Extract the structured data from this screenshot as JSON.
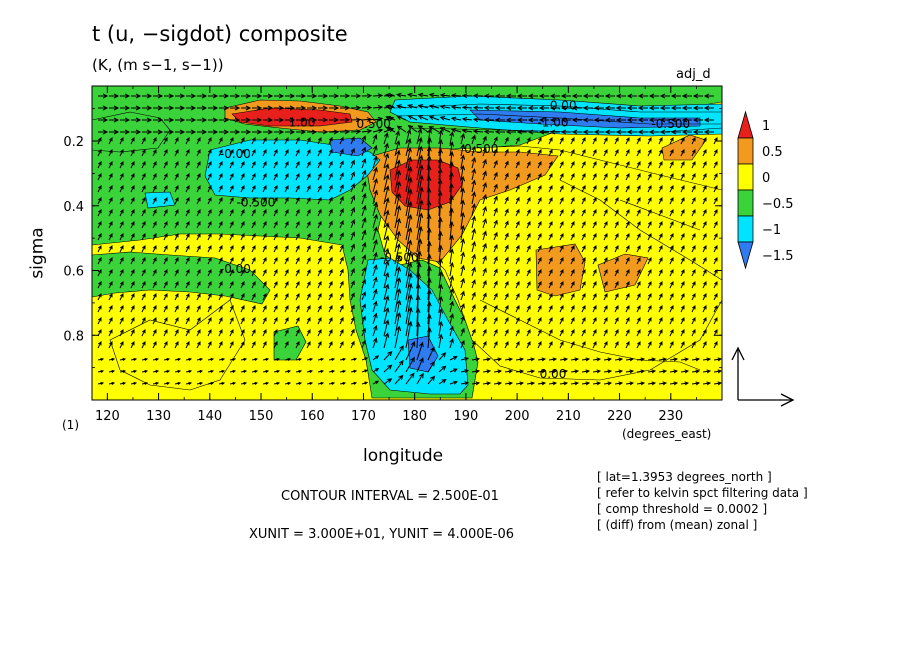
{
  "title": "t (u, −sigdot) composite",
  "units_title": "(K, (m s−1, s−1))",
  "experiment_label": "adj_d",
  "ylabel": "sigma",
  "xlabel": "longitude",
  "xunit_label": "(degrees_east)",
  "yunit_mark": "(1)",
  "contour_interval_text": "CONTOUR INTERVAL = 2.500E-01",
  "xyunit_text": "XUNIT = 3.000E+01, YUNIT = 4.000E-06",
  "info_lines": [
    "[ lat=1.3953 degrees_north ]",
    "[ refer to kelvin spct filtering data ]",
    "[ comp threshold = 0.0002 ]",
    "[ (diff) from (mean) zonal ]"
  ],
  "chart_data": {
    "type": "heatmap",
    "title": "t (u, −sigdot) composite",
    "xlabel": "longitude",
    "ylabel": "sigma",
    "xlim": [
      117,
      240
    ],
    "ylim": [
      1.0,
      0.03
    ],
    "x_ticks": [
      "120",
      "130",
      "140",
      "150",
      "160",
      "170",
      "180",
      "190",
      "200",
      "210",
      "220",
      "230"
    ],
    "x_tick_values": [
      120,
      130,
      140,
      150,
      160,
      170,
      180,
      190,
      200,
      210,
      220,
      230
    ],
    "y_ticks": [
      "0.2",
      "0.4",
      "0.6",
      "0.8"
    ],
    "y_tick_values": [
      0.2,
      0.4,
      0.6,
      0.8
    ],
    "colorbar": {
      "levels": [
        "1",
        "0.5",
        "0",
        "−0.5",
        "−1",
        "−1.5"
      ],
      "colors": [
        "#e8201c",
        "#f29a1e",
        "#ffff00",
        "#3ad33a",
        "#00e5ff",
        "#2f7bf0"
      ]
    },
    "colors": {
      "red": "#e8201c",
      "orange": "#f29a1e",
      "yellow": "#ffff00",
      "green": "#3ad33a",
      "cyan": "#00e5ff",
      "blue": "#2f7bf0"
    },
    "contour_labels": [
      {
        "text": "0.00",
        "lon": 209,
        "sigma": 0.09
      },
      {
        "text": "-1.00",
        "lon": 207,
        "sigma": 0.143
      },
      {
        "text": "-0.500",
        "lon": 230,
        "sigma": 0.148
      },
      {
        "text": "0.500",
        "lon": 193,
        "sigma": 0.224
      },
      {
        "text": "1.00",
        "lon": 158,
        "sigma": 0.143
      },
      {
        "text": "0.500",
        "lon": 172,
        "sigma": 0.148
      },
      {
        "text": "-0.00",
        "lon": 145,
        "sigma": 0.24
      },
      {
        "text": "-0.500",
        "lon": 149,
        "sigma": 0.39
      },
      {
        "text": "-0.00",
        "lon": 145,
        "sigma": 0.595
      },
      {
        "text": "-0.500",
        "lon": 177,
        "sigma": 0.56
      },
      {
        "text": "0.00",
        "lon": 207,
        "sigma": 0.92
      }
    ],
    "vector_reference": {
      "u": 30.0,
      "minus_sigdot": 4e-06
    }
  }
}
